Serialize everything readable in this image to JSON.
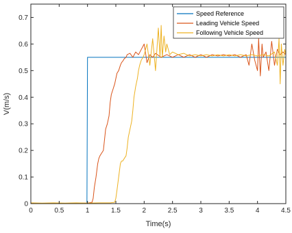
{
  "chart_data": {
    "type": "line",
    "title": "",
    "xlabel": "Time(s)",
    "ylabel": "V(m/s)",
    "xlim": [
      0,
      4.5
    ],
    "ylim": [
      0,
      0.75
    ],
    "xticks": [
      0,
      0.5,
      1,
      1.5,
      2,
      2.5,
      3,
      3.5,
      4,
      4.5
    ],
    "xtick_labels": [
      "0",
      "0.5",
      "1",
      "1.5",
      "2",
      "2.5",
      "3",
      "3.5",
      "4",
      "4.5"
    ],
    "yticks": [
      0,
      0.1,
      0.2,
      0.3,
      0.4,
      0.5,
      0.6,
      0.7
    ],
    "ytick_labels": [
      "0",
      "0.1",
      "0.2",
      "0.3",
      "0.4",
      "0.5",
      "0.6",
      "0.7"
    ],
    "grid": false,
    "legend_position": "top-right",
    "series": [
      {
        "name": "Speed Reference",
        "color": "#0072BD",
        "x": [
          0,
          0.99,
          1.0,
          4.5
        ],
        "y": [
          0,
          0,
          0.55,
          0.55
        ]
      },
      {
        "name": "Leading Vehicle Speed",
        "color": "#D95319",
        "x": [
          0,
          0.2,
          0.4,
          0.6,
          0.8,
          1.0,
          1.08,
          1.1,
          1.12,
          1.15,
          1.18,
          1.2,
          1.22,
          1.25,
          1.28,
          1.3,
          1.32,
          1.35,
          1.38,
          1.4,
          1.42,
          1.45,
          1.48,
          1.5,
          1.52,
          1.55,
          1.58,
          1.6,
          1.62,
          1.65,
          1.68,
          1.7,
          1.75,
          1.8,
          1.85,
          1.9,
          1.95,
          2.0,
          2.05,
          2.1,
          2.15,
          2.2,
          2.3,
          2.4,
          2.5,
          2.6,
          2.7,
          2.8,
          2.9,
          3.0,
          3.1,
          3.2,
          3.3,
          3.4,
          3.5,
          3.6,
          3.7,
          3.8,
          3.85,
          3.9,
          3.95,
          4.0,
          4.02,
          4.05,
          4.08,
          4.1,
          4.15,
          4.2,
          4.25,
          4.3,
          4.35,
          4.4,
          4.45,
          4.5
        ],
        "y": [
          0.002,
          0.001,
          0.002,
          0.001,
          0.002,
          0.002,
          0.005,
          0.02,
          0.06,
          0.1,
          0.15,
          0.17,
          0.18,
          0.19,
          0.2,
          0.24,
          0.28,
          0.3,
          0.33,
          0.38,
          0.41,
          0.43,
          0.45,
          0.47,
          0.49,
          0.5,
          0.52,
          0.53,
          0.535,
          0.545,
          0.55,
          0.56,
          0.565,
          0.55,
          0.57,
          0.56,
          0.58,
          0.6,
          0.53,
          0.56,
          0.55,
          0.565,
          0.55,
          0.56,
          0.55,
          0.56,
          0.55,
          0.56,
          0.55,
          0.56,
          0.55,
          0.56,
          0.555,
          0.56,
          0.555,
          0.56,
          0.55,
          0.56,
          0.52,
          0.6,
          0.54,
          0.5,
          0.62,
          0.48,
          0.6,
          0.55,
          0.57,
          0.5,
          0.61,
          0.52,
          0.58,
          0.56,
          0.57,
          0.56
        ]
      },
      {
        "name": "Following Vehicle Speed",
        "color": "#EDB120",
        "x": [
          0,
          0.2,
          0.4,
          0.6,
          0.8,
          1.0,
          1.2,
          1.4,
          1.48,
          1.5,
          1.52,
          1.55,
          1.58,
          1.6,
          1.62,
          1.65,
          1.68,
          1.7,
          1.72,
          1.75,
          1.78,
          1.8,
          1.82,
          1.85,
          1.88,
          1.9,
          1.92,
          1.95,
          1.98,
          2.0,
          2.05,
          2.1,
          2.15,
          2.2,
          2.25,
          2.28,
          2.3,
          2.32,
          2.35,
          2.38,
          2.4,
          2.45,
          2.5,
          2.6,
          2.7,
          2.8,
          2.9,
          3.0,
          3.1,
          3.2,
          3.3,
          3.4,
          3.5,
          3.6,
          3.7,
          3.8,
          3.9,
          4.0,
          4.1,
          4.2,
          4.3,
          4.35,
          4.38,
          4.4,
          4.42,
          4.45,
          4.48,
          4.5
        ],
        "y": [
          0.003,
          0.002,
          0.003,
          0.002,
          0.003,
          0.002,
          0.003,
          0.003,
          0.005,
          0.02,
          0.05,
          0.1,
          0.15,
          0.16,
          0.16,
          0.17,
          0.18,
          0.21,
          0.25,
          0.28,
          0.31,
          0.35,
          0.4,
          0.44,
          0.47,
          0.5,
          0.52,
          0.54,
          0.55,
          0.56,
          0.6,
          0.52,
          0.62,
          0.5,
          0.66,
          0.55,
          0.67,
          0.55,
          0.63,
          0.57,
          0.6,
          0.56,
          0.57,
          0.56,
          0.565,
          0.555,
          0.56,
          0.555,
          0.56,
          0.555,
          0.56,
          0.555,
          0.56,
          0.555,
          0.56,
          0.555,
          0.56,
          0.555,
          0.56,
          0.555,
          0.57,
          0.52,
          0.62,
          0.45,
          0.6,
          0.52,
          0.58,
          0.56
        ]
      }
    ]
  }
}
